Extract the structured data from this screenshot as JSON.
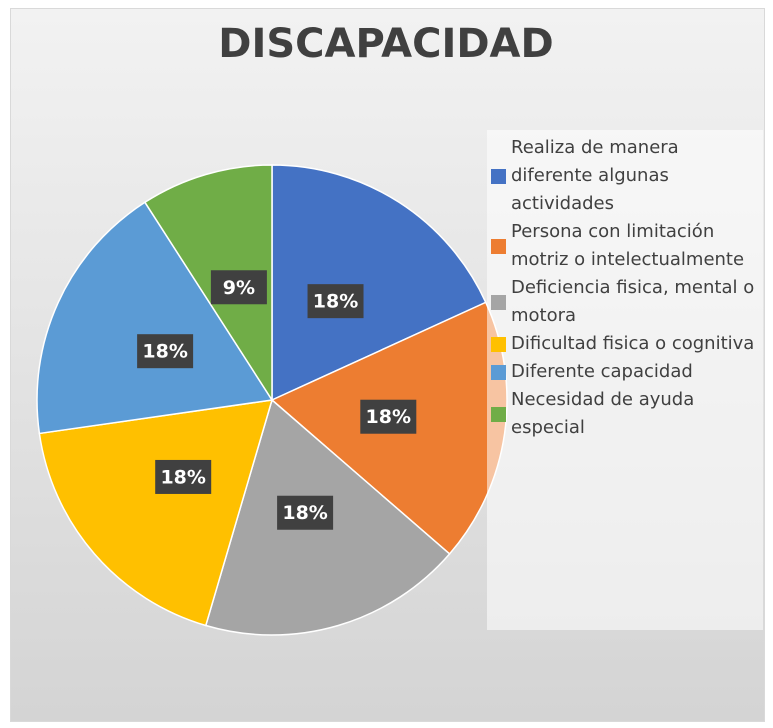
{
  "chart_data": {
    "type": "pie",
    "title": "DISCAPACIDAD",
    "categories": [
      "Realiza de manera diferente algunas actividades",
      "Persona con limitación motriz o intelectualmente",
      "Deficiencia fisica, mental o motora",
      "Dificultad fisica o cognitiva",
      "Diferente capacidad",
      "Necesidad de ayuda especial"
    ],
    "values": [
      18,
      18,
      18,
      18,
      18,
      9
    ],
    "value_labels": [
      "18%",
      "18%",
      "18%",
      "18%",
      "18%",
      "9%"
    ],
    "colors": [
      "#4472c4",
      "#ed7d31",
      "#a5a5a5",
      "#ffc000",
      "#5b9bd5",
      "#70ad47"
    ],
    "legend": "right"
  }
}
